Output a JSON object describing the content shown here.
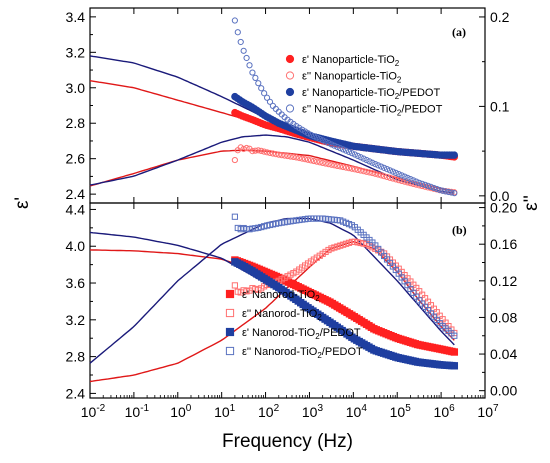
{
  "chart_data": {
    "type": "scatter",
    "xlabel": "Frequency (Hz)",
    "x_scale": "log",
    "xlim": [
      0.01,
      10000000
    ],
    "x_ticks": [
      {
        "v": 0.01,
        "base": "10",
        "exp": "-2"
      },
      {
        "v": 0.1,
        "base": "10",
        "exp": "-1"
      },
      {
        "v": 1,
        "base": "10",
        "exp": "0"
      },
      {
        "v": 10,
        "base": "10",
        "exp": "1"
      },
      {
        "v": 100,
        "base": "10",
        "exp": "2"
      },
      {
        "v": 1000,
        "base": "10",
        "exp": "3"
      },
      {
        "v": 10000,
        "base": "10",
        "exp": "4"
      },
      {
        "v": 100000,
        "base": "10",
        "exp": "5"
      },
      {
        "v": 1000000,
        "base": "10",
        "exp": "6"
      },
      {
        "v": 10000000,
        "base": "10",
        "exp": "7"
      }
    ],
    "ylabel_left": "ε'",
    "ylabel_right": "ε''",
    "colors": {
      "red": "#ff2020",
      "red_fit": "#e01818",
      "blue": "#1f3fa0",
      "blue_open": "#5a72c0",
      "navy_fit": "#1a1a7a",
      "pink": "#ff7070"
    },
    "panels": [
      {
        "label": "(a)",
        "ylim_left": [
          2.35,
          3.45
        ],
        "yticks_left": [
          "2.4",
          "2.6",
          "2.8",
          "3.0",
          "3.2",
          "3.4"
        ],
        "ylim_right": [
          -0.008,
          0.21
        ],
        "yticks_right": [
          "0.0",
          "0.1",
          "0.2"
        ],
        "legend": [
          {
            "marker": "filled-circle",
            "color": "#ff2020",
            "prefix": "ε' Nanoparticle-TiO",
            "sub": "2",
            "suffix": ""
          },
          {
            "marker": "open-circle",
            "color": "#ff7070",
            "prefix": "ε'' Nanoparticle-TiO",
            "sub": "2",
            "suffix": ""
          },
          {
            "marker": "filled-circle",
            "color": "#1f3fa0",
            "prefix": "ε' Nanoparticle-TiO",
            "sub": "2",
            "suffix": "/PEDOT"
          },
          {
            "marker": "open-circle",
            "color": "#5a72c0",
            "prefix": "ε'' Nanoparticle-TiO",
            "sub": "2",
            "suffix": "/PEDOT"
          }
        ],
        "series": [
          {
            "axis": "left",
            "marker": "filled-circle",
            "color": "#ff2020",
            "x": [
              20,
              30,
              50,
              100,
              200,
              500,
              1000,
              3000,
              10000,
              100000,
              1000000,
              2000000
            ],
            "y": [
              2.86,
              2.84,
              2.82,
              2.79,
              2.77,
              2.74,
              2.72,
              2.69,
              2.67,
              2.64,
              2.62,
              2.61
            ]
          },
          {
            "axis": "right",
            "marker": "open-circle",
            "color": "#ff7070",
            "x": [
              20,
              25,
              30,
              40,
              50,
              70,
              100,
              200,
              500,
              1000,
              3000,
              10000,
              30000,
              100000,
              300000,
              1000000,
              2000000
            ],
            "y": [
              0.04,
              0.056,
              0.052,
              0.054,
              0.05,
              0.051,
              0.049,
              0.046,
              0.043,
              0.04,
              0.035,
              0.03,
              0.025,
              0.018,
              0.012,
              0.006,
              0.004
            ]
          },
          {
            "axis": "left",
            "marker": "filled-circle",
            "color": "#1f3fa0",
            "x": [
              20,
              30,
              50,
              100,
              200,
              500,
              1000,
              3000,
              10000,
              100000,
              1000000,
              2000000
            ],
            "y": [
              2.95,
              2.92,
              2.89,
              2.84,
              2.8,
              2.76,
              2.73,
              2.7,
              2.67,
              2.64,
              2.62,
              2.62
            ]
          },
          {
            "axis": "right",
            "marker": "open-circle",
            "color": "#5a72c0",
            "x": [
              20,
              22,
              25,
              30,
              40,
              50,
              70,
              100,
              150,
              200,
              300,
              500,
              1000,
              3000,
              10000,
              30000,
              100000,
              300000,
              1000000,
              2000000
            ],
            "y": [
              0.196,
              0.187,
              0.178,
              0.165,
              0.15,
              0.138,
              0.125,
              0.112,
              0.1,
              0.094,
              0.086,
              0.078,
              0.069,
              0.058,
              0.047,
              0.036,
              0.025,
              0.015,
              0.006,
              0.003
            ]
          }
        ],
        "fits": [
          {
            "axis": "left",
            "color": "#e01818",
            "x": [
              0.01,
              0.1,
              1,
              10,
              100,
              1000,
              10000,
              100000,
              1000000,
              2000000
            ],
            "y": [
              3.04,
              3.0,
              2.93,
              2.86,
              2.79,
              2.73,
              2.68,
              2.65,
              2.63,
              2.62
            ]
          },
          {
            "axis": "right",
            "color": "#e01818",
            "x": [
              0.01,
              0.1,
              1,
              10,
              30,
              100,
              1000,
              10000,
              100000,
              1000000,
              2000000
            ],
            "y": [
              0.011,
              0.025,
              0.04,
              0.05,
              0.051,
              0.05,
              0.045,
              0.033,
              0.02,
              0.008,
              0.005
            ]
          },
          {
            "axis": "left",
            "color": "#1a1a7a",
            "x": [
              0.01,
              0.1,
              1,
              10,
              100,
              1000,
              10000,
              100000,
              1000000,
              2000000
            ],
            "y": [
              3.18,
              3.14,
              3.06,
              2.95,
              2.83,
              2.74,
              2.68,
              2.65,
              2.63,
              2.62
            ]
          },
          {
            "axis": "right",
            "color": "#1a1a7a",
            "x": [
              0.01,
              0.1,
              1,
              10,
              30,
              100,
              300,
              1000,
              10000,
              100000,
              1000000,
              2000000
            ],
            "y": [
              0.012,
              0.022,
              0.04,
              0.06,
              0.066,
              0.068,
              0.066,
              0.06,
              0.04,
              0.018,
              0.005,
              0.003
            ]
          }
        ]
      },
      {
        "label": "(b)",
        "ylim_left": [
          2.35,
          4.47
        ],
        "yticks_left": [
          "2.4",
          "2.8",
          "3.2",
          "3.6",
          "4.0",
          "4.4"
        ],
        "ylim_right": [
          -0.008,
          0.205
        ],
        "yticks_right": [
          "0.00",
          "0.04",
          "0.08",
          "0.12",
          "0.16",
          "0.20"
        ],
        "legend": [
          {
            "marker": "filled-square",
            "color": "#ff2020",
            "prefix": "ε' Nanorod-TiO",
            "sub": "2",
            "suffix": ""
          },
          {
            "marker": "open-square",
            "color": "#ff7070",
            "prefix": "ε'' Nanorod-TiO",
            "sub": "2",
            "suffix": ""
          },
          {
            "marker": "filled-square",
            "color": "#1f3fa0",
            "prefix": "ε' Nanorod-TiO",
            "sub": "2",
            "suffix": "/PEDOT"
          },
          {
            "marker": "open-square",
            "color": "#5a72c0",
            "prefix": "ε'' Nanorod-TiO",
            "sub": "2",
            "suffix": "/PEDOT"
          }
        ],
        "series": [
          {
            "axis": "left",
            "marker": "filled-square",
            "color": "#ff2020",
            "x": [
              20,
              30,
              50,
              100,
              200,
              500,
              1000,
              3000,
              10000,
              30000,
              100000,
              300000,
              1000000,
              2000000
            ],
            "y": [
              3.85,
              3.82,
              3.78,
              3.72,
              3.66,
              3.57,
              3.5,
              3.39,
              3.24,
              3.1,
              3.0,
              2.93,
              2.88,
              2.85
            ]
          },
          {
            "axis": "right",
            "marker": "open-square",
            "color": "#ff7070",
            "x": [
              20,
              25,
              30,
              40,
              50,
              70,
              100,
              200,
              500,
              1000,
              3000,
              10000,
              20000,
              50000,
              100000,
              300000,
              1000000,
              2000000
            ],
            "y": [
              0.115,
              0.105,
              0.11,
              0.108,
              0.112,
              0.11,
              0.115,
              0.12,
              0.13,
              0.14,
              0.155,
              0.163,
              0.16,
              0.15,
              0.135,
              0.11,
              0.08,
              0.063
            ]
          },
          {
            "axis": "left",
            "marker": "filled-square",
            "color": "#1f3fa0",
            "x": [
              20,
              30,
              50,
              100,
              200,
              500,
              1000,
              3000,
              10000,
              30000,
              100000,
              300000,
              1000000,
              2000000
            ],
            "y": [
              3.83,
              3.79,
              3.73,
              3.64,
              3.55,
              3.42,
              3.32,
              3.17,
              3.0,
              2.87,
              2.79,
              2.74,
              2.71,
              2.7
            ]
          },
          {
            "axis": "right",
            "marker": "open-square",
            "color": "#5a72c0",
            "x": [
              20,
              22,
              25,
              30,
              40,
              50,
              70,
              100,
              200,
              500,
              1000,
              2000,
              5000,
              10000,
              30000,
              100000,
              300000,
              1000000,
              2000000
            ],
            "y": [
              0.19,
              0.18,
              0.175,
              0.178,
              0.176,
              0.177,
              0.178,
              0.18,
              0.183,
              0.186,
              0.188,
              0.188,
              0.186,
              0.18,
              0.16,
              0.13,
              0.1,
              0.072,
              0.06
            ]
          }
        ],
        "fits": [
          {
            "axis": "left",
            "color": "#e01818",
            "x": [
              0.01,
              0.1,
              1,
              10,
              100,
              1000,
              10000,
              100000,
              1000000,
              2000000
            ],
            "y": [
              3.96,
              3.95,
              3.92,
              3.86,
              3.7,
              3.48,
              3.2,
              3.0,
              2.89,
              2.86
            ]
          },
          {
            "axis": "right",
            "color": "#e01818",
            "x": [
              0.01,
              0.1,
              1,
              10,
              100,
              1000,
              3000,
              10000,
              30000,
              100000,
              300000,
              1000000,
              2000000
            ],
            "y": [
              0.01,
              0.017,
              0.03,
              0.055,
              0.09,
              0.135,
              0.155,
              0.163,
              0.155,
              0.13,
              0.1,
              0.07,
              0.055
            ]
          },
          {
            "axis": "left",
            "color": "#1a1a7a",
            "x": [
              0.01,
              0.1,
              1,
              10,
              100,
              1000,
              10000,
              100000,
              1000000,
              2000000
            ],
            "y": [
              4.15,
              4.1,
              4.01,
              3.87,
              3.6,
              3.3,
              3.0,
              2.8,
              2.72,
              2.7
            ]
          },
          {
            "axis": "right",
            "color": "#1a1a7a",
            "x": [
              0.01,
              0.1,
              1,
              10,
              100,
              300,
              1000,
              3000,
              10000,
              100000,
              1000000,
              2000000
            ],
            "y": [
              0.03,
              0.07,
              0.12,
              0.16,
              0.183,
              0.188,
              0.188,
              0.183,
              0.17,
              0.12,
              0.065,
              0.05
            ]
          }
        ]
      }
    ]
  }
}
